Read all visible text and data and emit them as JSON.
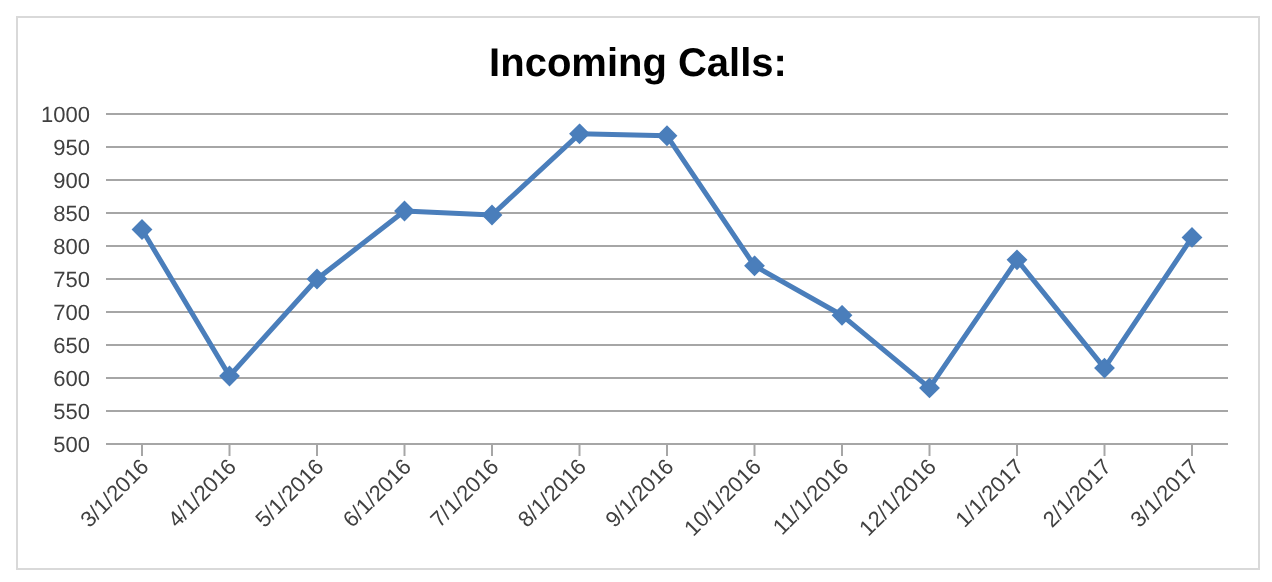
{
  "chart_data": {
    "type": "line",
    "title": "Incoming Calls:",
    "categories": [
      "3/1/2016",
      "4/1/2016",
      "5/1/2016",
      "6/1/2016",
      "7/1/2016",
      "8/1/2016",
      "9/1/2016",
      "10/1/2016",
      "11/1/2016",
      "12/1/2016",
      "1/1/2017",
      "2/1/2017",
      "3/1/2017"
    ],
    "series": [
      {
        "color": "#4a7ebb",
        "values": [
          825,
          603,
          750,
          853,
          847,
          970,
          967,
          770,
          695,
          585,
          779,
          615,
          813
        ]
      }
    ],
    "ylim": [
      500,
      1000
    ],
    "yticks": [
      500,
      550,
      600,
      650,
      700,
      750,
      800,
      850,
      900,
      950,
      1000
    ],
    "grid": "y",
    "legend": false,
    "marker": "diamond",
    "line_style": "solid"
  }
}
